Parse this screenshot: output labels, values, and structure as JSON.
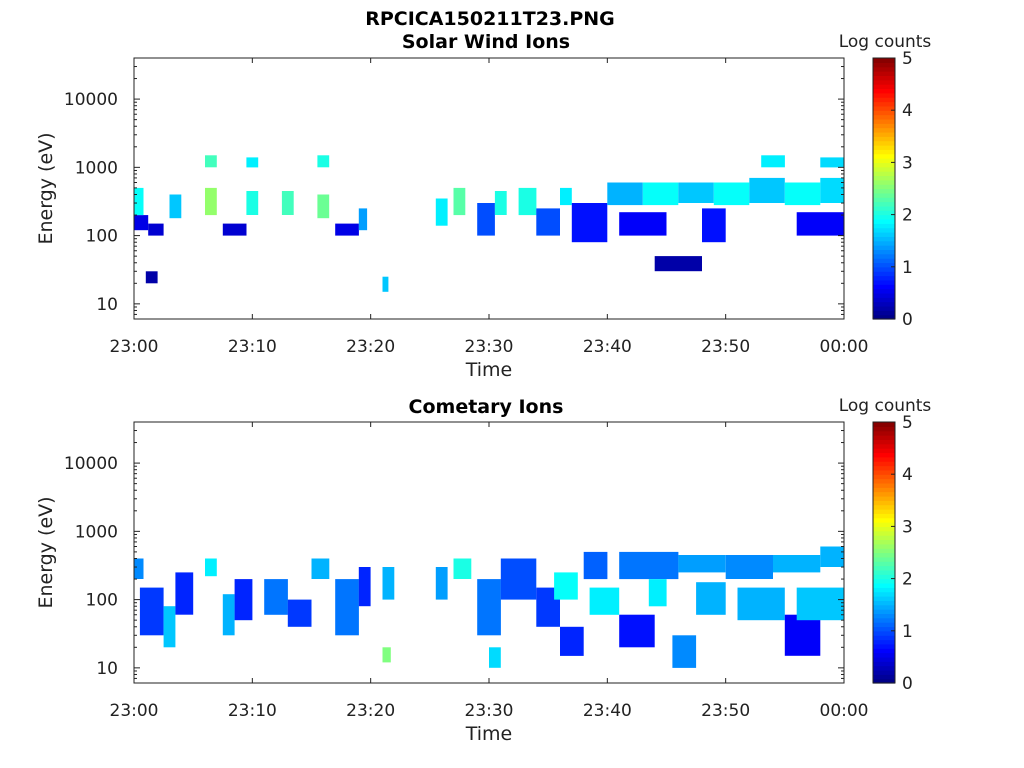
{
  "figure_title": "RPCICA150211T23.PNG",
  "chart_data": [
    {
      "type": "heatmap",
      "title": "Solar Wind Ions",
      "xlabel": "Time",
      "ylabel": "Energy (eV)",
      "xlim": [
        "23:00",
        "00:00"
      ],
      "xticks": [
        "23:00",
        "23:10",
        "23:20",
        "23:30",
        "23:40",
        "23:50",
        "00:00"
      ],
      "yscale": "log",
      "ylim": [
        6,
        40000
      ],
      "yticks": [
        10,
        100,
        1000,
        10000
      ],
      "ytick_labels": [
        "10",
        "100",
        "1000",
        "10000"
      ],
      "colorbar": {
        "label": "Log counts",
        "range": [
          0,
          5
        ],
        "ticks": [
          "0",
          "1",
          "2",
          "3",
          "4",
          "5"
        ],
        "colormap": "jet"
      },
      "energy_bands": [
        {
          "t_start": 0.0,
          "t_end": 1.2,
          "e_low": 120,
          "e_high": 200,
          "log_counts": 0.5
        },
        {
          "t_start": 0.0,
          "t_end": 0.8,
          "e_low": 200,
          "e_high": 500,
          "log_counts": 1.9
        },
        {
          "t_start": 1.0,
          "t_end": 2.0,
          "e_low": 20,
          "e_high": 30,
          "log_counts": 0.2
        },
        {
          "t_start": 1.2,
          "t_end": 2.5,
          "e_low": 100,
          "e_high": 150,
          "log_counts": 0.4
        },
        {
          "t_start": 3.0,
          "t_end": 4.0,
          "e_low": 180,
          "e_high": 400,
          "log_counts": 1.6
        },
        {
          "t_start": 6.0,
          "t_end": 7.0,
          "e_low": 200,
          "e_high": 500,
          "log_counts": 2.6
        },
        {
          "t_start": 6.0,
          "t_end": 7.0,
          "e_low": 1000,
          "e_high": 1500,
          "log_counts": 2.2
        },
        {
          "t_start": 7.5,
          "t_end": 9.5,
          "e_low": 100,
          "e_high": 150,
          "log_counts": 0.4
        },
        {
          "t_start": 9.5,
          "t_end": 10.5,
          "e_low": 200,
          "e_high": 450,
          "log_counts": 2.0
        },
        {
          "t_start": 9.5,
          "t_end": 10.5,
          "e_low": 1000,
          "e_high": 1400,
          "log_counts": 1.8
        },
        {
          "t_start": 12.5,
          "t_end": 13.5,
          "e_low": 200,
          "e_high": 450,
          "log_counts": 2.2
        },
        {
          "t_start": 15.5,
          "t_end": 16.5,
          "e_low": 180,
          "e_high": 400,
          "log_counts": 2.4
        },
        {
          "t_start": 15.5,
          "t_end": 16.5,
          "e_low": 1000,
          "e_high": 1500,
          "log_counts": 2.0
        },
        {
          "t_start": 17.0,
          "t_end": 19.0,
          "e_low": 100,
          "e_high": 150,
          "log_counts": 0.5
        },
        {
          "t_start": 19.0,
          "t_end": 19.7,
          "e_low": 120,
          "e_high": 250,
          "log_counts": 1.4
        },
        {
          "t_start": 21.0,
          "t_end": 21.5,
          "e_low": 15,
          "e_high": 25,
          "log_counts": 1.6
        },
        {
          "t_start": 25.5,
          "t_end": 26.5,
          "e_low": 140,
          "e_high": 350,
          "log_counts": 1.8
        },
        {
          "t_start": 27.0,
          "t_end": 28.0,
          "e_low": 200,
          "e_high": 500,
          "log_counts": 2.3
        },
        {
          "t_start": 29.0,
          "t_end": 30.5,
          "e_low": 100,
          "e_high": 300,
          "log_counts": 1.0
        },
        {
          "t_start": 30.5,
          "t_end": 31.5,
          "e_low": 200,
          "e_high": 450,
          "log_counts": 2.0
        },
        {
          "t_start": 32.5,
          "t_end": 34.0,
          "e_low": 200,
          "e_high": 500,
          "log_counts": 2.0
        },
        {
          "t_start": 34.0,
          "t_end": 36.0,
          "e_low": 100,
          "e_high": 250,
          "log_counts": 1.0
        },
        {
          "t_start": 36.0,
          "t_end": 37.0,
          "e_low": 280,
          "e_high": 500,
          "log_counts": 1.8
        },
        {
          "t_start": 37.0,
          "t_end": 40.0,
          "e_low": 80,
          "e_high": 300,
          "log_counts": 0.7
        },
        {
          "t_start": 40.0,
          "t_end": 43.0,
          "e_low": 280,
          "e_high": 600,
          "log_counts": 1.5
        },
        {
          "t_start": 41.0,
          "t_end": 45.0,
          "e_low": 100,
          "e_high": 220,
          "log_counts": 0.6
        },
        {
          "t_start": 43.0,
          "t_end": 46.0,
          "e_low": 280,
          "e_high": 600,
          "log_counts": 1.9
        },
        {
          "t_start": 44.0,
          "t_end": 48.0,
          "e_low": 30,
          "e_high": 50,
          "log_counts": 0.2
        },
        {
          "t_start": 46.0,
          "t_end": 49.0,
          "e_low": 300,
          "e_high": 600,
          "log_counts": 1.6
        },
        {
          "t_start": 48.0,
          "t_end": 50.0,
          "e_low": 80,
          "e_high": 250,
          "log_counts": 0.7
        },
        {
          "t_start": 49.0,
          "t_end": 52.0,
          "e_low": 280,
          "e_high": 600,
          "log_counts": 1.9
        },
        {
          "t_start": 52.0,
          "t_end": 55.0,
          "e_low": 300,
          "e_high": 700,
          "log_counts": 1.6
        },
        {
          "t_start": 53.0,
          "t_end": 55.0,
          "e_low": 1000,
          "e_high": 1500,
          "log_counts": 1.8
        },
        {
          "t_start": 55.0,
          "t_end": 58.0,
          "e_low": 280,
          "e_high": 600,
          "log_counts": 1.9
        },
        {
          "t_start": 56.0,
          "t_end": 60.0,
          "e_low": 100,
          "e_high": 220,
          "log_counts": 0.6
        },
        {
          "t_start": 58.0,
          "t_end": 60.0,
          "e_low": 300,
          "e_high": 700,
          "log_counts": 1.7
        },
        {
          "t_start": 58.0,
          "t_end": 60.0,
          "e_low": 1000,
          "e_high": 1400,
          "log_counts": 1.7
        }
      ]
    },
    {
      "type": "heatmap",
      "title": "Cometary Ions",
      "xlabel": "Time",
      "ylabel": "Energy (eV)",
      "xlim": [
        "23:00",
        "00:00"
      ],
      "xticks": [
        "23:00",
        "23:10",
        "23:20",
        "23:30",
        "23:40",
        "23:50",
        "00:00"
      ],
      "yscale": "log",
      "ylim": [
        6,
        40000
      ],
      "yticks": [
        10,
        100,
        1000,
        10000
      ],
      "ytick_labels": [
        "10",
        "100",
        "1000",
        "10000"
      ],
      "colorbar": {
        "label": "Log counts",
        "range": [
          0,
          5
        ],
        "ticks": [
          "0",
          "1",
          "2",
          "3",
          "4",
          "5"
        ],
        "colormap": "jet"
      },
      "energy_bands": [
        {
          "t_start": 0.0,
          "t_end": 0.8,
          "e_low": 200,
          "e_high": 400,
          "log_counts": 1.3
        },
        {
          "t_start": 0.5,
          "t_end": 2.5,
          "e_low": 30,
          "e_high": 150,
          "log_counts": 0.9
        },
        {
          "t_start": 2.5,
          "t_end": 3.5,
          "e_low": 20,
          "e_high": 80,
          "log_counts": 1.6
        },
        {
          "t_start": 3.5,
          "t_end": 5.0,
          "e_low": 60,
          "e_high": 250,
          "log_counts": 0.8
        },
        {
          "t_start": 6.0,
          "t_end": 7.0,
          "e_low": 220,
          "e_high": 400,
          "log_counts": 1.8
        },
        {
          "t_start": 7.5,
          "t_end": 8.5,
          "e_low": 30,
          "e_high": 120,
          "log_counts": 1.5
        },
        {
          "t_start": 8.5,
          "t_end": 10.0,
          "e_low": 50,
          "e_high": 200,
          "log_counts": 0.8
        },
        {
          "t_start": 11.0,
          "t_end": 13.0,
          "e_low": 60,
          "e_high": 200,
          "log_counts": 1.2
        },
        {
          "t_start": 13.0,
          "t_end": 15.0,
          "e_low": 40,
          "e_high": 100,
          "log_counts": 0.9
        },
        {
          "t_start": 15.0,
          "t_end": 16.5,
          "e_low": 200,
          "e_high": 400,
          "log_counts": 1.5
        },
        {
          "t_start": 17.0,
          "t_end": 19.0,
          "e_low": 30,
          "e_high": 200,
          "log_counts": 1.2
        },
        {
          "t_start": 19.0,
          "t_end": 20.0,
          "e_low": 80,
          "e_high": 300,
          "log_counts": 0.8
        },
        {
          "t_start": 21.0,
          "t_end": 21.7,
          "e_low": 12,
          "e_high": 20,
          "log_counts": 2.5
        },
        {
          "t_start": 21.0,
          "t_end": 22.0,
          "e_low": 100,
          "e_high": 300,
          "log_counts": 1.5
        },
        {
          "t_start": 25.5,
          "t_end": 26.5,
          "e_low": 100,
          "e_high": 300,
          "log_counts": 1.4
        },
        {
          "t_start": 27.0,
          "t_end": 28.5,
          "e_low": 200,
          "e_high": 400,
          "log_counts": 2.0
        },
        {
          "t_start": 29.0,
          "t_end": 31.0,
          "e_low": 30,
          "e_high": 200,
          "log_counts": 1.2
        },
        {
          "t_start": 30.0,
          "t_end": 31.0,
          "e_low": 10,
          "e_high": 20,
          "log_counts": 1.7
        },
        {
          "t_start": 31.0,
          "t_end": 34.0,
          "e_low": 100,
          "e_high": 400,
          "log_counts": 1.0
        },
        {
          "t_start": 34.0,
          "t_end": 36.0,
          "e_low": 40,
          "e_high": 150,
          "log_counts": 0.9
        },
        {
          "t_start": 35.5,
          "t_end": 37.5,
          "e_low": 100,
          "e_high": 250,
          "log_counts": 1.9
        },
        {
          "t_start": 36.0,
          "t_end": 38.0,
          "e_low": 15,
          "e_high": 40,
          "log_counts": 0.8
        },
        {
          "t_start": 38.0,
          "t_end": 40.0,
          "e_low": 200,
          "e_high": 500,
          "log_counts": 1.1
        },
        {
          "t_start": 38.5,
          "t_end": 41.0,
          "e_low": 60,
          "e_high": 150,
          "log_counts": 1.8
        },
        {
          "t_start": 41.0,
          "t_end": 44.0,
          "e_low": 20,
          "e_high": 60,
          "log_counts": 0.7
        },
        {
          "t_start": 41.0,
          "t_end": 46.0,
          "e_low": 200,
          "e_high": 500,
          "log_counts": 1.2
        },
        {
          "t_start": 43.5,
          "t_end": 45.0,
          "e_low": 80,
          "e_high": 200,
          "log_counts": 1.8
        },
        {
          "t_start": 45.5,
          "t_end": 47.5,
          "e_low": 10,
          "e_high": 30,
          "log_counts": 1.3
        },
        {
          "t_start": 46.0,
          "t_end": 50.0,
          "e_low": 250,
          "e_high": 450,
          "log_counts": 1.4
        },
        {
          "t_start": 47.5,
          "t_end": 50.0,
          "e_low": 60,
          "e_high": 180,
          "log_counts": 1.5
        },
        {
          "t_start": 50.0,
          "t_end": 54.0,
          "e_low": 200,
          "e_high": 450,
          "log_counts": 1.3
        },
        {
          "t_start": 51.0,
          "t_end": 55.0,
          "e_low": 50,
          "e_high": 150,
          "log_counts": 1.5
        },
        {
          "t_start": 54.0,
          "t_end": 58.0,
          "e_low": 250,
          "e_high": 450,
          "log_counts": 1.5
        },
        {
          "t_start": 55.0,
          "t_end": 58.0,
          "e_low": 15,
          "e_high": 60,
          "log_counts": 0.6
        },
        {
          "t_start": 56.0,
          "t_end": 60.0,
          "e_low": 50,
          "e_high": 150,
          "log_counts": 1.6
        },
        {
          "t_start": 58.0,
          "t_end": 60.0,
          "e_low": 300,
          "e_high": 600,
          "log_counts": 1.5
        }
      ]
    }
  ]
}
